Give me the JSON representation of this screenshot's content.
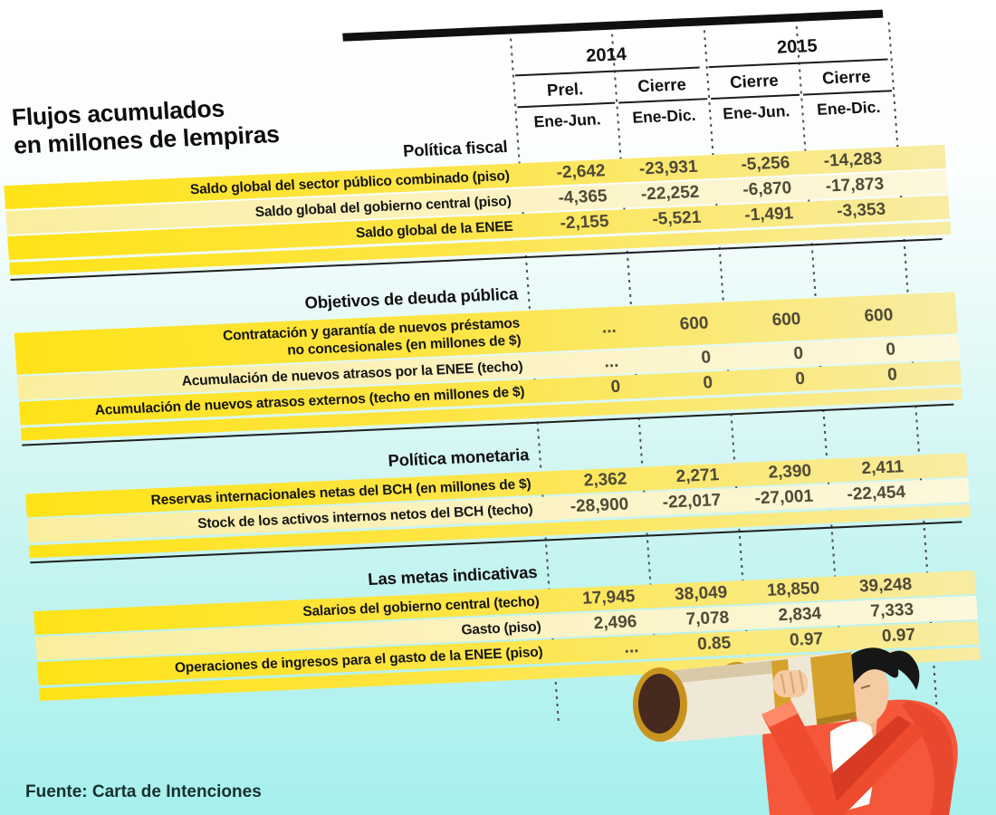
{
  "title": "Flujos acumulados\nen millones de lempiras",
  "source": "Fuente: Carta de Intenciones",
  "illustration": "man-looking-through-binoculars",
  "colors": {
    "background_top": "#ffffff",
    "background_bottom": "#a6f0ed",
    "band_bright": "#ffe318",
    "band_pale": "#faee9e",
    "suit_red": "#f5573b",
    "binocular_gold": "#d6a22b",
    "value_text": "#504a38"
  },
  "table": {
    "year_groups": [
      {
        "label": "2014"
      },
      {
        "label": "2015"
      }
    ],
    "col_headers": [
      {
        "top": "Prel.",
        "bottom": "Ene-Jun."
      },
      {
        "top": "Cierre",
        "bottom": "Ene-Dic."
      },
      {
        "top": "Cierre",
        "bottom": "Ene-Jun."
      },
      {
        "top": "Cierre",
        "bottom": "Ene-Dic."
      }
    ],
    "sections": [
      {
        "header": "Política fiscal",
        "divider": true,
        "rows": [
          {
            "label": "Saldo global del sector público combinado (piso)",
            "values": [
              "-2,642",
              "-23,931",
              "-5,256",
              "-14,283"
            ]
          },
          {
            "label": "Saldo global del gobierno central (piso)",
            "values": [
              "-4,365",
              "-22,252",
              "-6,870",
              "-17,873"
            ]
          },
          {
            "label": "Saldo global de la ENEE",
            "values": [
              "-2,155",
              "-5,521",
              "-1,491",
              "-3,353"
            ]
          }
        ]
      },
      {
        "header": "Objetivos de deuda pública",
        "divider": true,
        "rows": [
          {
            "label": "Contratación y garantía de nuevos préstamos\nno concesionales (en millones de $)",
            "tall": true,
            "values": [
              "...",
              "600",
              "600",
              "600"
            ]
          },
          {
            "label": "Acumulación de nuevos atrasos por la ENEE (techo)",
            "values": [
              "...",
              "0",
              "0",
              "0"
            ]
          },
          {
            "label": "Acumulación de nuevos atrasos externos (techo en millones de $)",
            "values": [
              "0",
              "0",
              "0",
              "0"
            ]
          }
        ]
      },
      {
        "header": "Política monetaria",
        "divider": true,
        "rows": [
          {
            "label": "Reservas internacionales netas del BCH (en millones de $)",
            "values": [
              "2,362",
              "2,271",
              "2,390",
              "2,411"
            ]
          },
          {
            "label": "Stock de los activos internos netos del BCH (techo)",
            "values": [
              "-28,900",
              "-22,017",
              "-27,001",
              "-22,454"
            ]
          }
        ]
      },
      {
        "header": "Las metas indicativas",
        "divider": false,
        "rows": [
          {
            "label": "Salarios del gobierno central (techo)",
            "values": [
              "17,945",
              "38,049",
              "18,850",
              "39,248"
            ]
          },
          {
            "label": "Gasto (piso)",
            "values": [
              "2,496",
              "7,078",
              "2,834",
              "7,333"
            ]
          },
          {
            "label": "Operaciones de ingresos para el gasto de la ENEE (piso)",
            "values": [
              "...",
              "0.85",
              "0.97",
              "0.97"
            ]
          }
        ]
      }
    ]
  },
  "chart_data": {
    "type": "table",
    "title": "Flujos acumulados en millones de lempiras",
    "columns": [
      "2014 Prel. Ene-Jun.",
      "2014 Cierre Ene-Dic.",
      "2015 Cierre Ene-Jun.",
      "2015 Cierre Ene-Dic."
    ],
    "sections": [
      {
        "name": "Política fiscal",
        "rows": [
          {
            "label": "Saldo global del sector público combinado (piso)",
            "values": [
              -2642,
              -23931,
              -5256,
              -14283
            ]
          },
          {
            "label": "Saldo global del gobierno central (piso)",
            "values": [
              -4365,
              -22252,
              -6870,
              -17873
            ]
          },
          {
            "label": "Saldo global de la ENEE",
            "values": [
              -2155,
              -5521,
              -1491,
              -3353
            ]
          }
        ]
      },
      {
        "name": "Objetivos de deuda pública",
        "rows": [
          {
            "label": "Contratación y garantía de nuevos préstamos no concesionales (en millones de $)",
            "values": [
              null,
              600,
              600,
              600
            ]
          },
          {
            "label": "Acumulación de nuevos atrasos por la ENEE (techo)",
            "values": [
              null,
              0,
              0,
              0
            ]
          },
          {
            "label": "Acumulación de nuevos atrasos externos (techo en millones de $)",
            "values": [
              0,
              0,
              0,
              0
            ]
          }
        ]
      },
      {
        "name": "Política monetaria",
        "rows": [
          {
            "label": "Reservas internacionales netas del BCH (en millones de $)",
            "values": [
              2362,
              2271,
              2390,
              2411
            ]
          },
          {
            "label": "Stock de los activos internos netos del BCH (techo)",
            "values": [
              -28900,
              -22017,
              -27001,
              -22454
            ]
          }
        ]
      },
      {
        "name": "Las metas indicativas",
        "rows": [
          {
            "label": "Salarios del gobierno central (techo)",
            "values": [
              17945,
              38049,
              18850,
              39248
            ]
          },
          {
            "label": "Gasto (piso)",
            "values": [
              2496,
              7078,
              2834,
              7333
            ]
          },
          {
            "label": "Operaciones de ingresos para el gasto de la ENEE (piso)",
            "values": [
              null,
              0.85,
              0.97,
              0.97
            ]
          }
        ]
      }
    ],
    "source": "Fuente: Carta de Intenciones"
  }
}
